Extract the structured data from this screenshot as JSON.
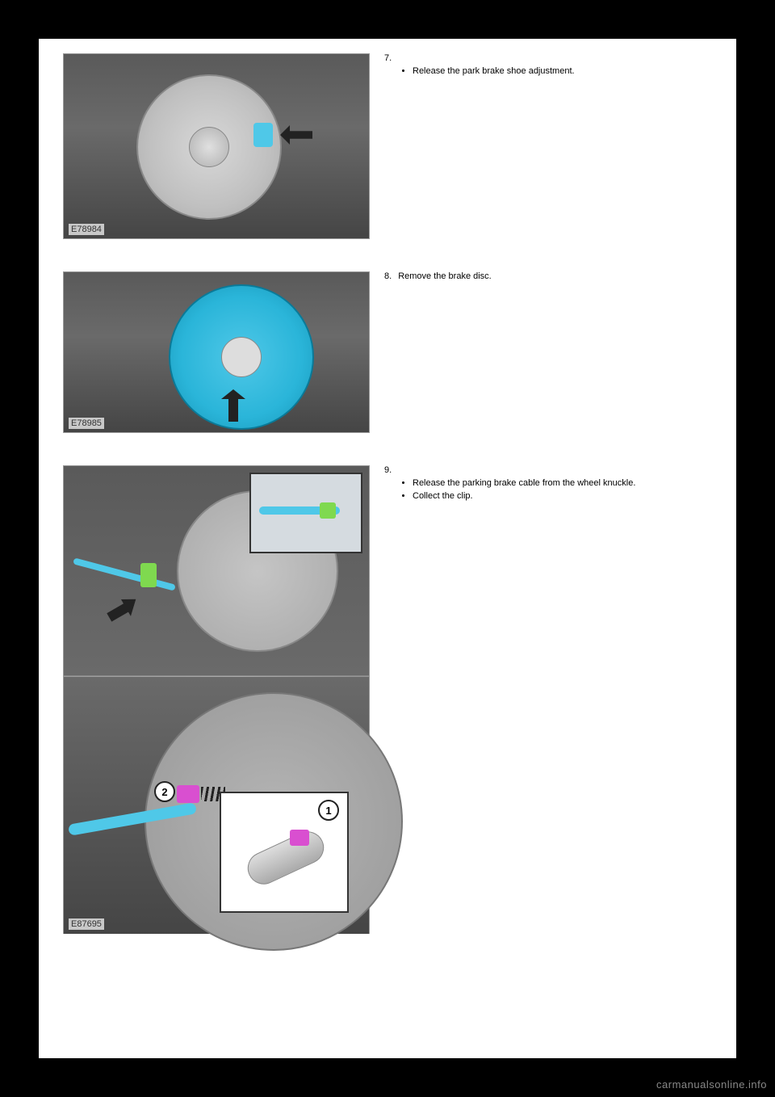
{
  "steps": [
    {
      "number": "7.",
      "bullets": [
        "Release the park brake shoe adjustment."
      ],
      "figure_label": "E78984",
      "figure": {
        "type": "technical-illustration",
        "description": "Rear brake disc assembly with cyan highlight on adjustment access and black arrow pointing left",
        "highlight_color": "#4fc8e8",
        "arrow_color": "#222222",
        "background": "#606060",
        "rotor_color": "#c8c8c8"
      }
    },
    {
      "number": "8.",
      "text": "Remove the brake disc.",
      "figure_label": "E78985",
      "figure": {
        "type": "technical-illustration",
        "description": "Cyan colored brake disc with black arrow pointing up toward removal direction",
        "disc_color": "#2ab5d9",
        "arrow_color": "#222222",
        "background": "#606060"
      }
    },
    {
      "number": "9.",
      "bullets": [
        "Release the parking brake cable from the wheel knuckle.",
        "Collect the clip."
      ],
      "figure_label": "E87695",
      "figure": {
        "type": "technical-illustration",
        "description": "Two-panel view: top shows backing plate with cyan cable and green clip plus inset detail; bottom shows close-up with magenta connector, callout circles 1 and 2, and inset detail of cable end",
        "cable_color": "#4fc8e8",
        "clip_color": "#7fd94f",
        "connector_color": "#d94fd0",
        "callouts": [
          "1",
          "2"
        ],
        "arrow_color": "#222222",
        "background": "#606060"
      }
    }
  ],
  "watermark": "carmanualsonline.info",
  "colors": {
    "page_bg": "#ffffff",
    "outer_bg": "#000000",
    "text": "#000000",
    "watermark_text": "#888888"
  }
}
